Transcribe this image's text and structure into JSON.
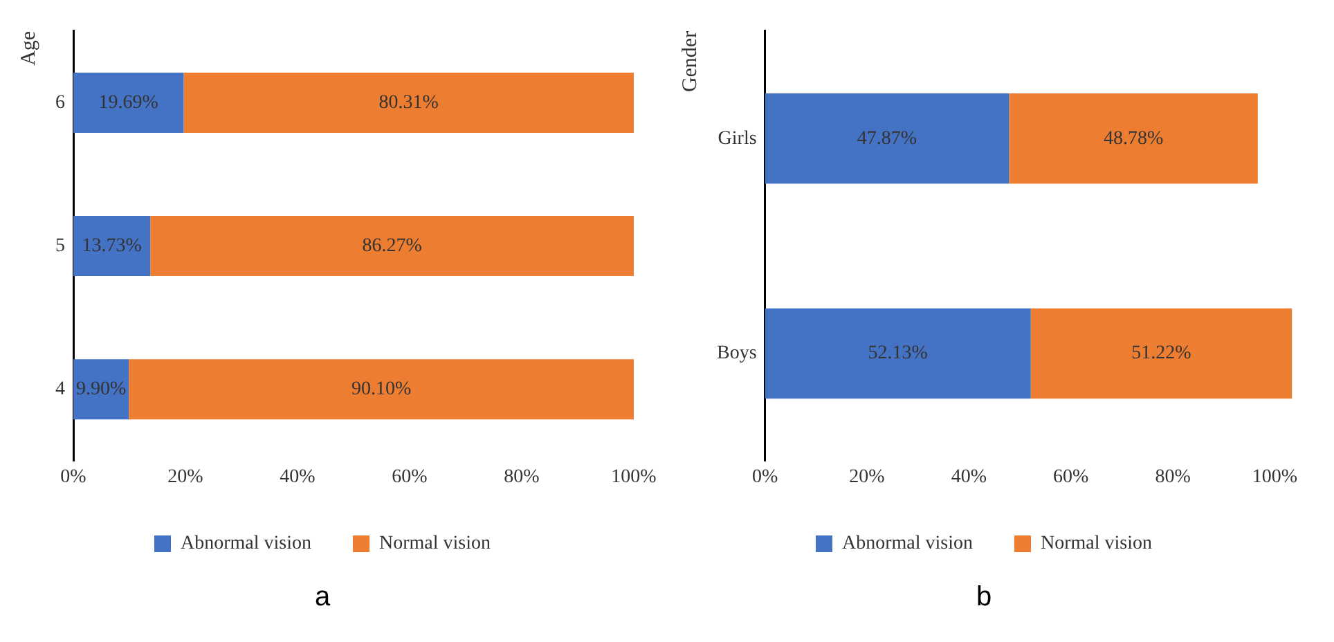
{
  "chart_data": [
    {
      "type": "bar",
      "orientation": "horizontal",
      "stacked": true,
      "title": "a",
      "ylabel": "Age",
      "categories": [
        "6",
        "5",
        "4"
      ],
      "series": [
        {
          "name": "Abnormal vision",
          "color": "#4472c4",
          "values": [
            19.69,
            13.73,
            9.9
          ],
          "value_labels": [
            "19.69%",
            "13.73%",
            "9.90%"
          ]
        },
        {
          "name": "Normal vision",
          "color": "#ed7d31",
          "values": [
            80.31,
            86.27,
            90.1
          ],
          "value_labels": [
            "80.31%",
            "86.27%",
            "90.10%"
          ]
        }
      ],
      "xlim": [
        0,
        100
      ],
      "xticks": [
        {
          "value": 0,
          "label": "0%"
        },
        {
          "value": 20,
          "label": "20%"
        },
        {
          "value": 40,
          "label": "40%"
        },
        {
          "value": 60,
          "label": "60%"
        },
        {
          "value": 80,
          "label": "80%"
        },
        {
          "value": 100,
          "label": "100%"
        }
      ],
      "grid": false,
      "legend": "bottom"
    },
    {
      "type": "bar",
      "orientation": "horizontal",
      "stacked": true,
      "title": "b",
      "ylabel": "Gender",
      "categories": [
        "Girls",
        "Boys"
      ],
      "series": [
        {
          "name": "Abnormal vision",
          "color": "#4472c4",
          "values": [
            47.87,
            52.13
          ],
          "value_labels": [
            "47.87%",
            "52.13%"
          ]
        },
        {
          "name": "Normal vision",
          "color": "#ed7d31",
          "values": [
            48.78,
            51.22
          ],
          "value_labels": [
            "48.78%",
            "51.22%"
          ]
        }
      ],
      "xlim": [
        0,
        104
      ],
      "xticks": [
        {
          "value": 0,
          "label": "0%"
        },
        {
          "value": 20,
          "label": "20%"
        },
        {
          "value": 40,
          "label": "40%"
        },
        {
          "value": 60,
          "label": "60%"
        },
        {
          "value": 80,
          "label": "80%"
        },
        {
          "value": 100,
          "label": "100%"
        }
      ],
      "grid": false,
      "legend": "bottom"
    }
  ]
}
